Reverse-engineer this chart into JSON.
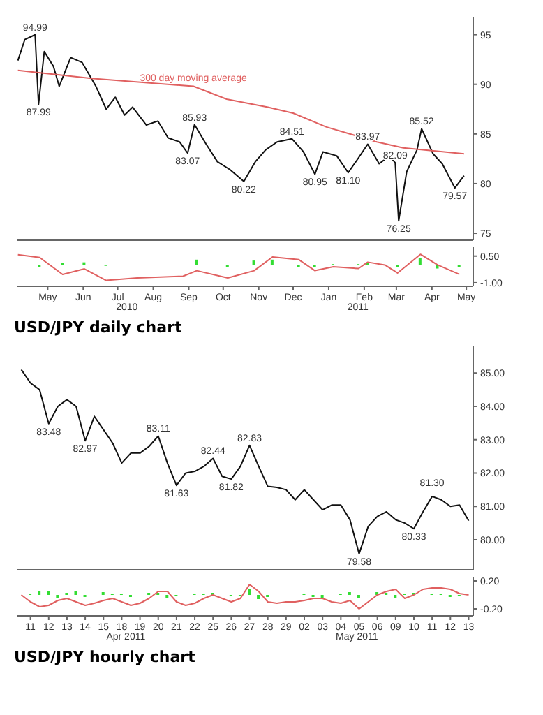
{
  "chart_data": [
    {
      "type": "line",
      "x": [
        "2010-04-19",
        "2010-04-25",
        "2010-05-04",
        "2010-05-07",
        "2010-05-12",
        "2010-05-20",
        "2010-05-25",
        "2010-06-04",
        "2010-06-14",
        "2010-06-26",
        "2010-07-05",
        "2010-07-13",
        "2010-07-21",
        "2010-07-28",
        "2010-08-09",
        "2010-08-19",
        "2010-08-28",
        "2010-09-07",
        "2010-09-14",
        "2010-09-20",
        "2010-09-30",
        "2010-10-10",
        "2010-10-21",
        "2010-11-02",
        "2010-11-12",
        "2010-11-21",
        "2010-12-01",
        "2010-12-14",
        "2010-12-24",
        "2011-01-03",
        "2011-01-10",
        "2011-01-22",
        "2011-02-01",
        "2011-02-10",
        "2011-02-18",
        "2011-02-28",
        "2011-03-09",
        "2011-03-14",
        "2011-03-17",
        "2011-03-24",
        "2011-04-02",
        "2011-04-06",
        "2011-04-16",
        "2011-04-24",
        "2011-05-05",
        "2011-05-13"
      ],
      "series": [
        {
          "color": "#111111",
          "values": [
            92.4,
            94.5,
            94.99,
            87.99,
            93.3,
            91.8,
            89.8,
            92.7,
            92.2,
            89.8,
            87.5,
            88.7,
            86.9,
            87.7,
            85.9,
            86.3,
            84.6,
            84.2,
            83.07,
            85.93,
            84.0,
            82.2,
            81.4,
            80.22,
            82.2,
            83.4,
            84.2,
            84.51,
            83.2,
            80.95,
            83.2,
            82.8,
            81.1,
            82.6,
            83.97,
            82.0,
            82.8,
            82.09,
            76.25,
            81.2,
            83.4,
            85.52,
            83.0,
            82.0,
            79.57,
            80.8
          ]
        },
        {
          "name": "300 day moving average",
          "color": "#e06060",
          "x": [
            "2010-04-19",
            "2010-06-22",
            "2010-09-19",
            "2010-10-18",
            "2010-11-23",
            "2010-12-15",
            "2011-01-13",
            "2011-02-26",
            "2011-03-21",
            "2011-05-13"
          ],
          "values": [
            91.4,
            90.6,
            89.8,
            88.5,
            87.7,
            87.1,
            85.7,
            84.2,
            83.6,
            83.0
          ]
        }
      ],
      "xlim": [
        "2010-04-18",
        "2011-05-21"
      ],
      "ylim": [
        74.3,
        96.8
      ],
      "yticks": [
        75,
        80,
        85,
        90,
        95
      ],
      "tick_labels": "y",
      "annotations": [
        {
          "text": "94.99",
          "x": "2010-05-04",
          "y": 94.99
        },
        {
          "text": "87.99",
          "x": "2010-05-07",
          "y": 87.99
        },
        {
          "text": "83.07",
          "x": "2010-09-14",
          "y": 83.07
        },
        {
          "text": "85.93",
          "x": "2010-09-20",
          "y": 85.93
        },
        {
          "text": "80.22",
          "x": "2010-11-02",
          "y": 80.22
        },
        {
          "text": "84.51",
          "x": "2010-12-14",
          "y": 84.51
        },
        {
          "text": "80.95",
          "x": "2011-01-03",
          "y": 80.95
        },
        {
          "text": "81.10",
          "x": "2011-02-01",
          "y": 81.1
        },
        {
          "text": "83.97",
          "x": "2011-02-18",
          "y": 83.97
        },
        {
          "text": "82.09",
          "x": "2011-03-14",
          "y": 82.09
        },
        {
          "text": "76.25",
          "x": "2011-03-17",
          "y": 76.25
        },
        {
          "text": "85.52",
          "x": "2011-04-06",
          "y": 85.52
        },
        {
          "text": "79.57",
          "x": "2011-05-05",
          "y": 79.57
        }
      ]
    },
    {
      "type": "line",
      "x": [
        "2010-04-19",
        "2010-05-08",
        "2010-05-28",
        "2010-06-16",
        "2010-07-05",
        "2010-08-01",
        "2010-09-10",
        "2010-09-22",
        "2010-10-19",
        "2010-11-11",
        "2010-11-27",
        "2010-12-20",
        "2011-01-03",
        "2011-01-19",
        "2011-02-10",
        "2011-02-18",
        "2011-03-05",
        "2011-03-16",
        "2011-04-05",
        "2011-04-20",
        "2011-05-09"
      ],
      "series": [
        {
          "type": "bar",
          "color": "#33dd33",
          "values": [
            0,
            -0.1,
            0.1,
            0.15,
            -0.05,
            0,
            0,
            0.3,
            -0.1,
            0.25,
            0.3,
            -0.1,
            -0.1,
            0.05,
            0.05,
            0.1,
            null,
            -0.1,
            0.4,
            -0.2,
            -0.1
          ]
        },
        {
          "color": "#e06060",
          "values": [
            0.58,
            0.42,
            -0.53,
            -0.22,
            -0.87,
            -0.73,
            -0.63,
            -0.32,
            -0.73,
            -0.32,
            0.45,
            0.3,
            -0.32,
            -0.1,
            -0.2,
            0.16,
            0,
            -0.45,
            0.6,
            0,
            -0.53
          ]
        }
      ],
      "xlim": [
        "2010-04-18",
        "2011-05-21"
      ],
      "xticks": [
        {
          "value": "2010-05-15",
          "label": "May"
        },
        {
          "value": "2010-06-15",
          "label": "Jun"
        },
        {
          "value": "2010-07-15",
          "label": "Jul"
        },
        {
          "value": "2010-08-15",
          "label": "Aug"
        },
        {
          "value": "2010-09-15",
          "label": "Sep"
        },
        {
          "value": "2010-10-15",
          "label": "Oct"
        },
        {
          "value": "2010-11-15",
          "label": "Nov"
        },
        {
          "value": "2010-12-15",
          "label": "Dec"
        },
        {
          "value": "2011-01-15",
          "label": "Jan"
        },
        {
          "value": "2011-02-15",
          "label": "Feb"
        },
        {
          "value": "2011-03-15",
          "label": "Mar"
        },
        {
          "value": "2011-04-15",
          "label": "Apr"
        },
        {
          "value": "2011-05-15",
          "label": "May"
        }
      ],
      "ylim": [
        -1.2,
        1.0
      ],
      "yticks": [
        {
          "value": 0.5,
          "label": "0.50"
        },
        {
          "value": -1,
          "label": "-1.00"
        }
      ],
      "annotations": [
        "2010",
        "2011",
        "USD/JPY daily chart"
      ]
    },
    {
      "type": "line",
      "categories": [
        null,
        "11",
        null,
        "12",
        null,
        "13",
        null,
        "14",
        null,
        "15",
        null,
        "18",
        null,
        "19",
        null,
        "20",
        null,
        "21",
        null,
        "22",
        null,
        "25",
        null,
        "26",
        null,
        "27",
        null,
        "28",
        null,
        "29",
        null,
        "02",
        null,
        "03",
        null,
        "04",
        null,
        "05",
        null,
        "06",
        null,
        "09",
        null,
        "10",
        null,
        "11",
        null,
        "12",
        null,
        "13"
      ],
      "series": [
        {
          "color": "#111111",
          "values": [
            85.1,
            84.7,
            84.5,
            83.48,
            84.0,
            84.2,
            84.0,
            82.97,
            83.7,
            83.3,
            82.9,
            82.3,
            82.6,
            82.6,
            82.8,
            83.11,
            82.3,
            81.63,
            82.0,
            82.05,
            82.2,
            82.44,
            81.9,
            81.82,
            82.2,
            82.83,
            82.2,
            81.6,
            81.57,
            81.5,
            81.2,
            81.5,
            81.2,
            80.9,
            81.04,
            81.04,
            80.6,
            79.58,
            80.4,
            80.7,
            80.84,
            80.6,
            80.5,
            80.33,
            80.84,
            81.3,
            81.2,
            81.0,
            81.04,
            80.57
          ]
        }
      ],
      "ylim": [
        79.1,
        85.8
      ],
      "yticks": [
        {
          "value": 80,
          "label": "80.00"
        },
        {
          "value": 81,
          "label": "81.00"
        },
        {
          "value": 82,
          "label": "82.00"
        },
        {
          "value": 83,
          "label": "83.00"
        },
        {
          "value": 84,
          "label": "84.00"
        },
        {
          "value": 85,
          "label": "85.00"
        }
      ],
      "tick_labels": "y",
      "annotations": [
        {
          "text": "83.48",
          "x": "12",
          "y": 83.48
        },
        {
          "text": "82.97",
          "x": "14",
          "y": 82.97
        },
        {
          "text": "83.11",
          "x": "20",
          "y": 83.11
        },
        {
          "text": "81.63",
          "x": "21",
          "y": 81.63
        },
        {
          "text": "82.44",
          "x": "25",
          "y": 82.44
        },
        {
          "text": "81.82",
          "x": "26",
          "y": 81.82
        },
        {
          "text": "82.83",
          "x": "27",
          "y": 82.83
        },
        {
          "text": "79.58",
          "x": "05",
          "y": 79.58
        },
        {
          "text": "80.33",
          "x": "10",
          "y": 80.33
        },
        "81.30"
      ]
    },
    {
      "type": "line",
      "categories": [
        null,
        "11",
        null,
        "12",
        null,
        "13",
        null,
        "14",
        null,
        "15",
        null,
        "18",
        null,
        "19",
        null,
        "20",
        null,
        "21",
        null,
        "22",
        null,
        "25",
        null,
        "26",
        null,
        "27",
        null,
        "28",
        null,
        "29",
        null,
        "02",
        null,
        "03",
        null,
        "04",
        null,
        "05",
        null,
        "06",
        null,
        "09",
        null,
        "10",
        null,
        "11",
        null,
        "12",
        null,
        "13"
      ],
      "series": [
        {
          "type": "bar",
          "color": "#33dd33",
          "values": [
            0,
            0.02,
            0.05,
            0.05,
            -0.05,
            0.03,
            0.05,
            -0.03,
            0,
            0.04,
            0.02,
            0.02,
            -0.03,
            0,
            0.03,
            0.03,
            -0.05,
            -0.02,
            0,
            0.02,
            0.02,
            0.03,
            0,
            -0.02,
            -0.02,
            0.09,
            -0.06,
            -0.03,
            0,
            0,
            null,
            0.02,
            -0.03,
            -0.04,
            0,
            0.02,
            0.04,
            -0.05,
            0,
            0.04,
            0.03,
            -0.04,
            0.02,
            0.03,
            0,
            0.02,
            0.02,
            -0.03,
            -0.02,
            0
          ]
        },
        {
          "color": "#e06060",
          "values": [
            0,
            -0.1,
            -0.17,
            -0.15,
            -0.08,
            -0.05,
            -0.1,
            -0.15,
            -0.12,
            -0.08,
            -0.05,
            -0.1,
            -0.15,
            -0.12,
            -0.05,
            0.05,
            0.05,
            -0.1,
            -0.15,
            -0.12,
            -0.05,
            0,
            -0.05,
            -0.1,
            -0.05,
            0.15,
            0.05,
            -0.1,
            -0.12,
            -0.1,
            -0.1,
            -0.08,
            -0.05,
            -0.05,
            -0.1,
            -0.12,
            -0.08,
            -0.2,
            -0.1,
            0,
            0.05,
            0.08,
            -0.05,
            0,
            0.08,
            0.1,
            0.1,
            0.08,
            0.02,
            0
          ]
        }
      ],
      "ylim": [
        -0.3,
        0.26
      ],
      "yticks": [
        {
          "value": 0.2,
          "label": "0.20"
        },
        {
          "value": -0.2,
          "label": "-0.20"
        }
      ],
      "annotations": [
        "Apr 2011",
        "May 2011",
        "USD/JPY hourly chart"
      ]
    }
  ]
}
